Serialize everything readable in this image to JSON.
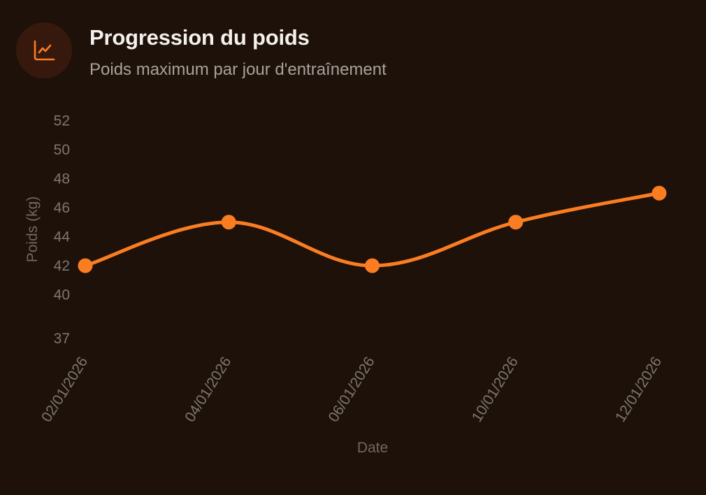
{
  "header": {
    "icon": "line-chart-icon",
    "title": "Progression du poids",
    "subtitle": "Poids maximum par jour d'entraînement"
  },
  "colors": {
    "background": "#1e110a",
    "accent": "#fb7d22",
    "icon_bg": "#36190c",
    "tick_text": "#7c7670"
  },
  "chart_data": {
    "type": "line",
    "title": "Progression du poids",
    "subtitle": "Poids maximum par jour d'entraînement",
    "xlabel": "Date",
    "ylabel": "Poids (kg)",
    "categories": [
      "02/01/2026",
      "04/01/2026",
      "06/01/2026",
      "10/01/2026",
      "12/01/2026"
    ],
    "series": [
      {
        "name": "Poids (kg)",
        "values": [
          42,
          45,
          42,
          45,
          47
        ]
      }
    ],
    "y_ticks": [
      37,
      40,
      42,
      44,
      46,
      48,
      50,
      52
    ],
    "ylim": [
      37,
      52
    ],
    "grid": false,
    "legend": "none",
    "smooth": true
  }
}
